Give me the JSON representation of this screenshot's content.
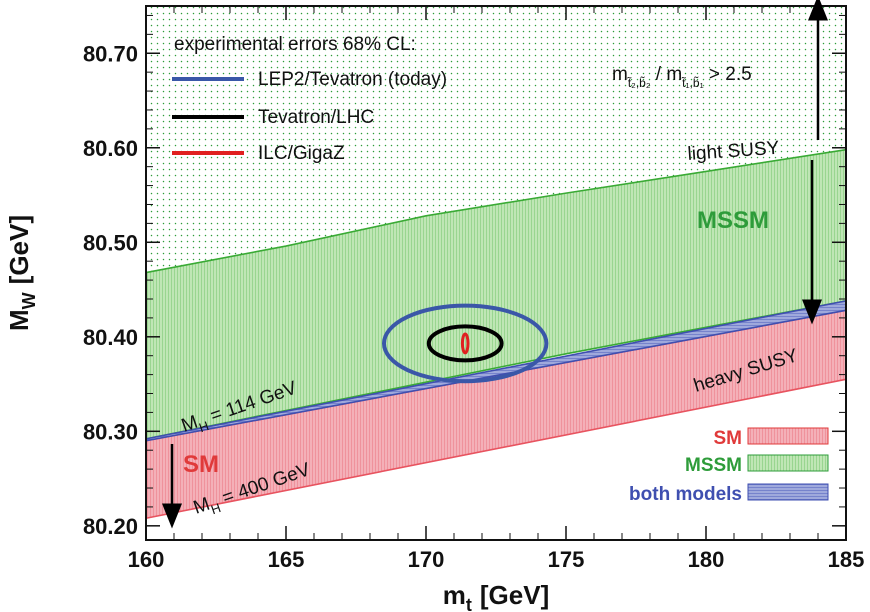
{
  "chart_data": {
    "type": "area",
    "xlabel": "m",
    "xlabel_sub": "t",
    "xlabel_unit": "[GeV]",
    "ylabel": "M",
    "ylabel_sub": "W",
    "ylabel_unit": "[GeV]",
    "xlim": [
      160,
      185
    ],
    "ylim": [
      80.185,
      80.75
    ],
    "x_ticks": [
      160,
      165,
      170,
      175,
      180,
      185
    ],
    "x_tick_labels": [
      "160",
      "165",
      "170",
      "175",
      "180",
      "185"
    ],
    "y_ticks": [
      80.2,
      80.3,
      80.4,
      80.5,
      80.6,
      80.7
    ],
    "y_tick_labels": [
      "80.20",
      "80.30",
      "80.40",
      "80.50",
      "80.60",
      "80.70"
    ],
    "bands": [
      {
        "name": "SM",
        "color": "#e8535f",
        "fill": "#f4b0b8",
        "x": [
          160,
          185
        ],
        "upper": [
          80.29,
          80.428
        ],
        "lower": [
          80.208,
          80.355
        ]
      },
      {
        "name": "MSSM",
        "color": "#3aaa35",
        "fill": "#bfe6b5",
        "x": [
          160,
          165,
          170,
          175,
          180,
          185
        ],
        "upper": [
          80.468,
          80.496,
          80.528,
          80.552,
          80.575,
          80.598
        ],
        "lower": [
          80.292,
          80.322,
          80.352,
          80.382,
          80.41,
          80.438
        ]
      },
      {
        "name": "both models",
        "color": "#3f4fb0",
        "fill": "#9fa9dc",
        "x": [
          160,
          185
        ],
        "upper": [
          80.292,
          80.438
        ],
        "lower": [
          80.29,
          80.428
        ]
      }
    ],
    "above_band_dots": {
      "color": "#2e9c3a"
    },
    "ellipses": [
      {
        "name": "LEP2/Tevatron (today)",
        "color": "#3a57a8",
        "cx": 171.4,
        "cy": 80.393,
        "rx": 2.9,
        "ry": 0.04
      },
      {
        "name": "Tevatron/LHC",
        "color": "#000000",
        "cx": 171.4,
        "cy": 80.393,
        "rx": 1.3,
        "ry": 0.018
      },
      {
        "name": "ILC/GigaZ",
        "color": "#e02020",
        "cx": 171.4,
        "cy": 80.393,
        "rx": 0.1,
        "ry": 0.01
      }
    ],
    "legend": {
      "title": "experimental errors 68% CL:",
      "placement": "top-left",
      "entries": [
        {
          "label": "LEP2/Tevatron (today)",
          "color": "#3a57a8"
        },
        {
          "label": "Tevatron/LHC",
          "color": "#000000"
        },
        {
          "label": "ILC/GigaZ",
          "color": "#e02020"
        }
      ]
    },
    "model_key": {
      "placement": "bottom-right",
      "entries": [
        {
          "label": "SM",
          "color": "#e03a3a",
          "fill": "#f4b0b8"
        },
        {
          "label": "MSSM",
          "color": "#2e9c3a",
          "fill": "#bfe6b5"
        },
        {
          "label": "both models",
          "color": "#3f4fb0",
          "fill": "#9fa9dc"
        }
      ]
    },
    "annotations": {
      "mssm": {
        "text": "MSSM",
        "color": "#2e9c3a"
      },
      "sm": {
        "text": "SM",
        "color": "#e03a3a"
      },
      "light_susy": "light SUSY",
      "heavy_susy": "heavy SUSY",
      "mh_114": {
        "m": "M",
        "sub": "H",
        "rest": " = 114 GeV"
      },
      "mh_400": {
        "m": "M",
        "sub": "H",
        "rest": " = 400 GeV"
      },
      "ratio": {
        "m1": "m",
        "sub1": "t̃₂,b̃₂",
        "slash": " / m",
        "sub2": "t̃₁,b̃₁",
        "rest": " > 2.5"
      }
    }
  }
}
